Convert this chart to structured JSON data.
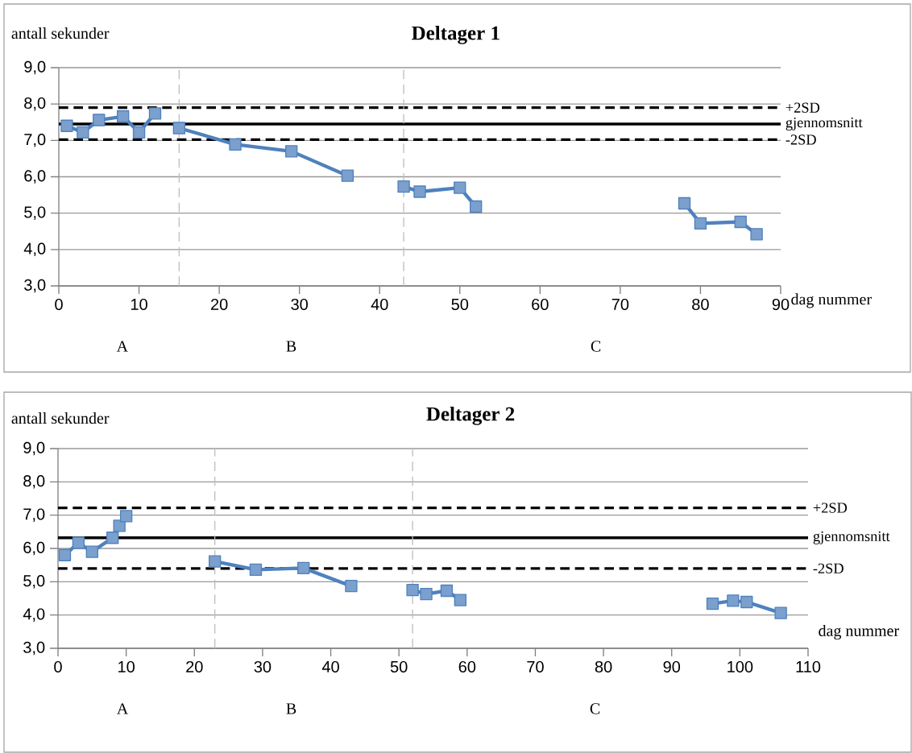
{
  "chart_data": [
    {
      "type": "line",
      "title": "Deltager 1",
      "xlabel": "dag nummer",
      "ylabel": "antall sekunder",
      "series": [
        {
          "color": "#4f81bd",
          "x": [
            1,
            3,
            5,
            8,
            10,
            12
          ],
          "values": [
            7.4,
            7.22,
            7.56,
            7.66,
            7.22,
            7.74
          ]
        },
        {
          "color": "#4f81bd",
          "x": [
            15,
            22,
            29,
            36
          ],
          "values": [
            7.34,
            6.89,
            6.7,
            6.03
          ]
        },
        {
          "color": "#4f81bd",
          "x": [
            43,
            45,
            50,
            52
          ],
          "values": [
            5.73,
            5.59,
            5.7,
            5.18
          ]
        },
        {
          "color": "#4f81bd",
          "x": [
            78,
            80,
            85,
            87
          ],
          "values": [
            5.27,
            4.72,
            4.76,
            4.42
          ]
        }
      ],
      "xlim": [
        0,
        90
      ],
      "ylim": [
        3,
        9
      ],
      "xticks": [
        0,
        10,
        20,
        30,
        40,
        50,
        60,
        70,
        80,
        90
      ],
      "yticks": [
        {
          "value": 3,
          "label": "3,0"
        },
        {
          "value": 4,
          "label": "4,0"
        },
        {
          "value": 5,
          "label": "5,0"
        },
        {
          "value": 6,
          "label": "6,0"
        },
        {
          "value": 7,
          "label": "7,0"
        },
        {
          "value": 8,
          "label": "8,0"
        },
        {
          "value": 9,
          "label": "9,0"
        }
      ],
      "ref_lines": [
        {
          "axis": "y",
          "value": 7.9,
          "label": "+2SD",
          "color": "#000000",
          "line_style": "dashed"
        },
        {
          "axis": "y",
          "value": 7.45,
          "label": "gjennomsnitt",
          "color": "#000000",
          "line_style": "solid"
        },
        {
          "axis": "y",
          "value": 7.02,
          "label": "-2SD",
          "color": "#000000",
          "line_style": "dashed"
        },
        {
          "axis": "x",
          "value": 15,
          "color": "#bfbfbf",
          "line_style": "dashed"
        },
        {
          "axis": "x",
          "value": 43,
          "color": "#bfbfbf",
          "line_style": "dashed"
        }
      ],
      "annotations": [
        "A",
        "B",
        "C"
      ],
      "grid": "y",
      "marker": "square"
    },
    {
      "type": "line",
      "title": "Deltager 2",
      "xlabel": "dag nummer",
      "ylabel": "antall sekunder",
      "series": [
        {
          "color": "#4f81bd",
          "x": [
            1,
            3,
            5,
            8,
            9,
            10
          ],
          "values": [
            5.8,
            6.17,
            5.9,
            6.32,
            6.68,
            6.97
          ]
        },
        {
          "color": "#4f81bd",
          "x": [
            23,
            29,
            36,
            43
          ],
          "values": [
            5.61,
            5.36,
            5.41,
            4.87
          ]
        },
        {
          "color": "#4f81bd",
          "x": [
            52,
            54,
            57,
            59
          ],
          "values": [
            4.75,
            4.63,
            4.73,
            4.45
          ]
        },
        {
          "color": "#4f81bd",
          "x": [
            96,
            99,
            101,
            106
          ],
          "values": [
            4.34,
            4.43,
            4.39,
            4.06
          ]
        }
      ],
      "xlim": [
        0,
        110
      ],
      "ylim": [
        3,
        9
      ],
      "xticks": [
        0,
        10,
        20,
        30,
        40,
        50,
        60,
        70,
        80,
        90,
        100,
        110
      ],
      "yticks": [
        {
          "value": 3,
          "label": "3,0"
        },
        {
          "value": 4,
          "label": "4,0"
        },
        {
          "value": 5,
          "label": "5,0"
        },
        {
          "value": 6,
          "label": "6,0"
        },
        {
          "value": 7,
          "label": "7,0"
        },
        {
          "value": 8,
          "label": "8,0"
        },
        {
          "value": 9,
          "label": "9,0"
        }
      ],
      "ref_lines": [
        {
          "axis": "y",
          "value": 7.22,
          "label": "+2SD",
          "color": "#000000",
          "line_style": "dashed"
        },
        {
          "axis": "y",
          "value": 6.32,
          "label": "gjennomsnitt",
          "color": "#000000",
          "line_style": "solid"
        },
        {
          "axis": "y",
          "value": 5.4,
          "label": "-2SD",
          "color": "#000000",
          "line_style": "dashed"
        },
        {
          "axis": "x",
          "value": 23,
          "color": "#bfbfbf",
          "line_style": "dashed"
        },
        {
          "axis": "x",
          "value": 52,
          "color": "#bfbfbf",
          "line_style": "dashed"
        }
      ],
      "annotations": [
        "A",
        "B",
        "C"
      ],
      "grid": "y",
      "marker": "square"
    }
  ]
}
